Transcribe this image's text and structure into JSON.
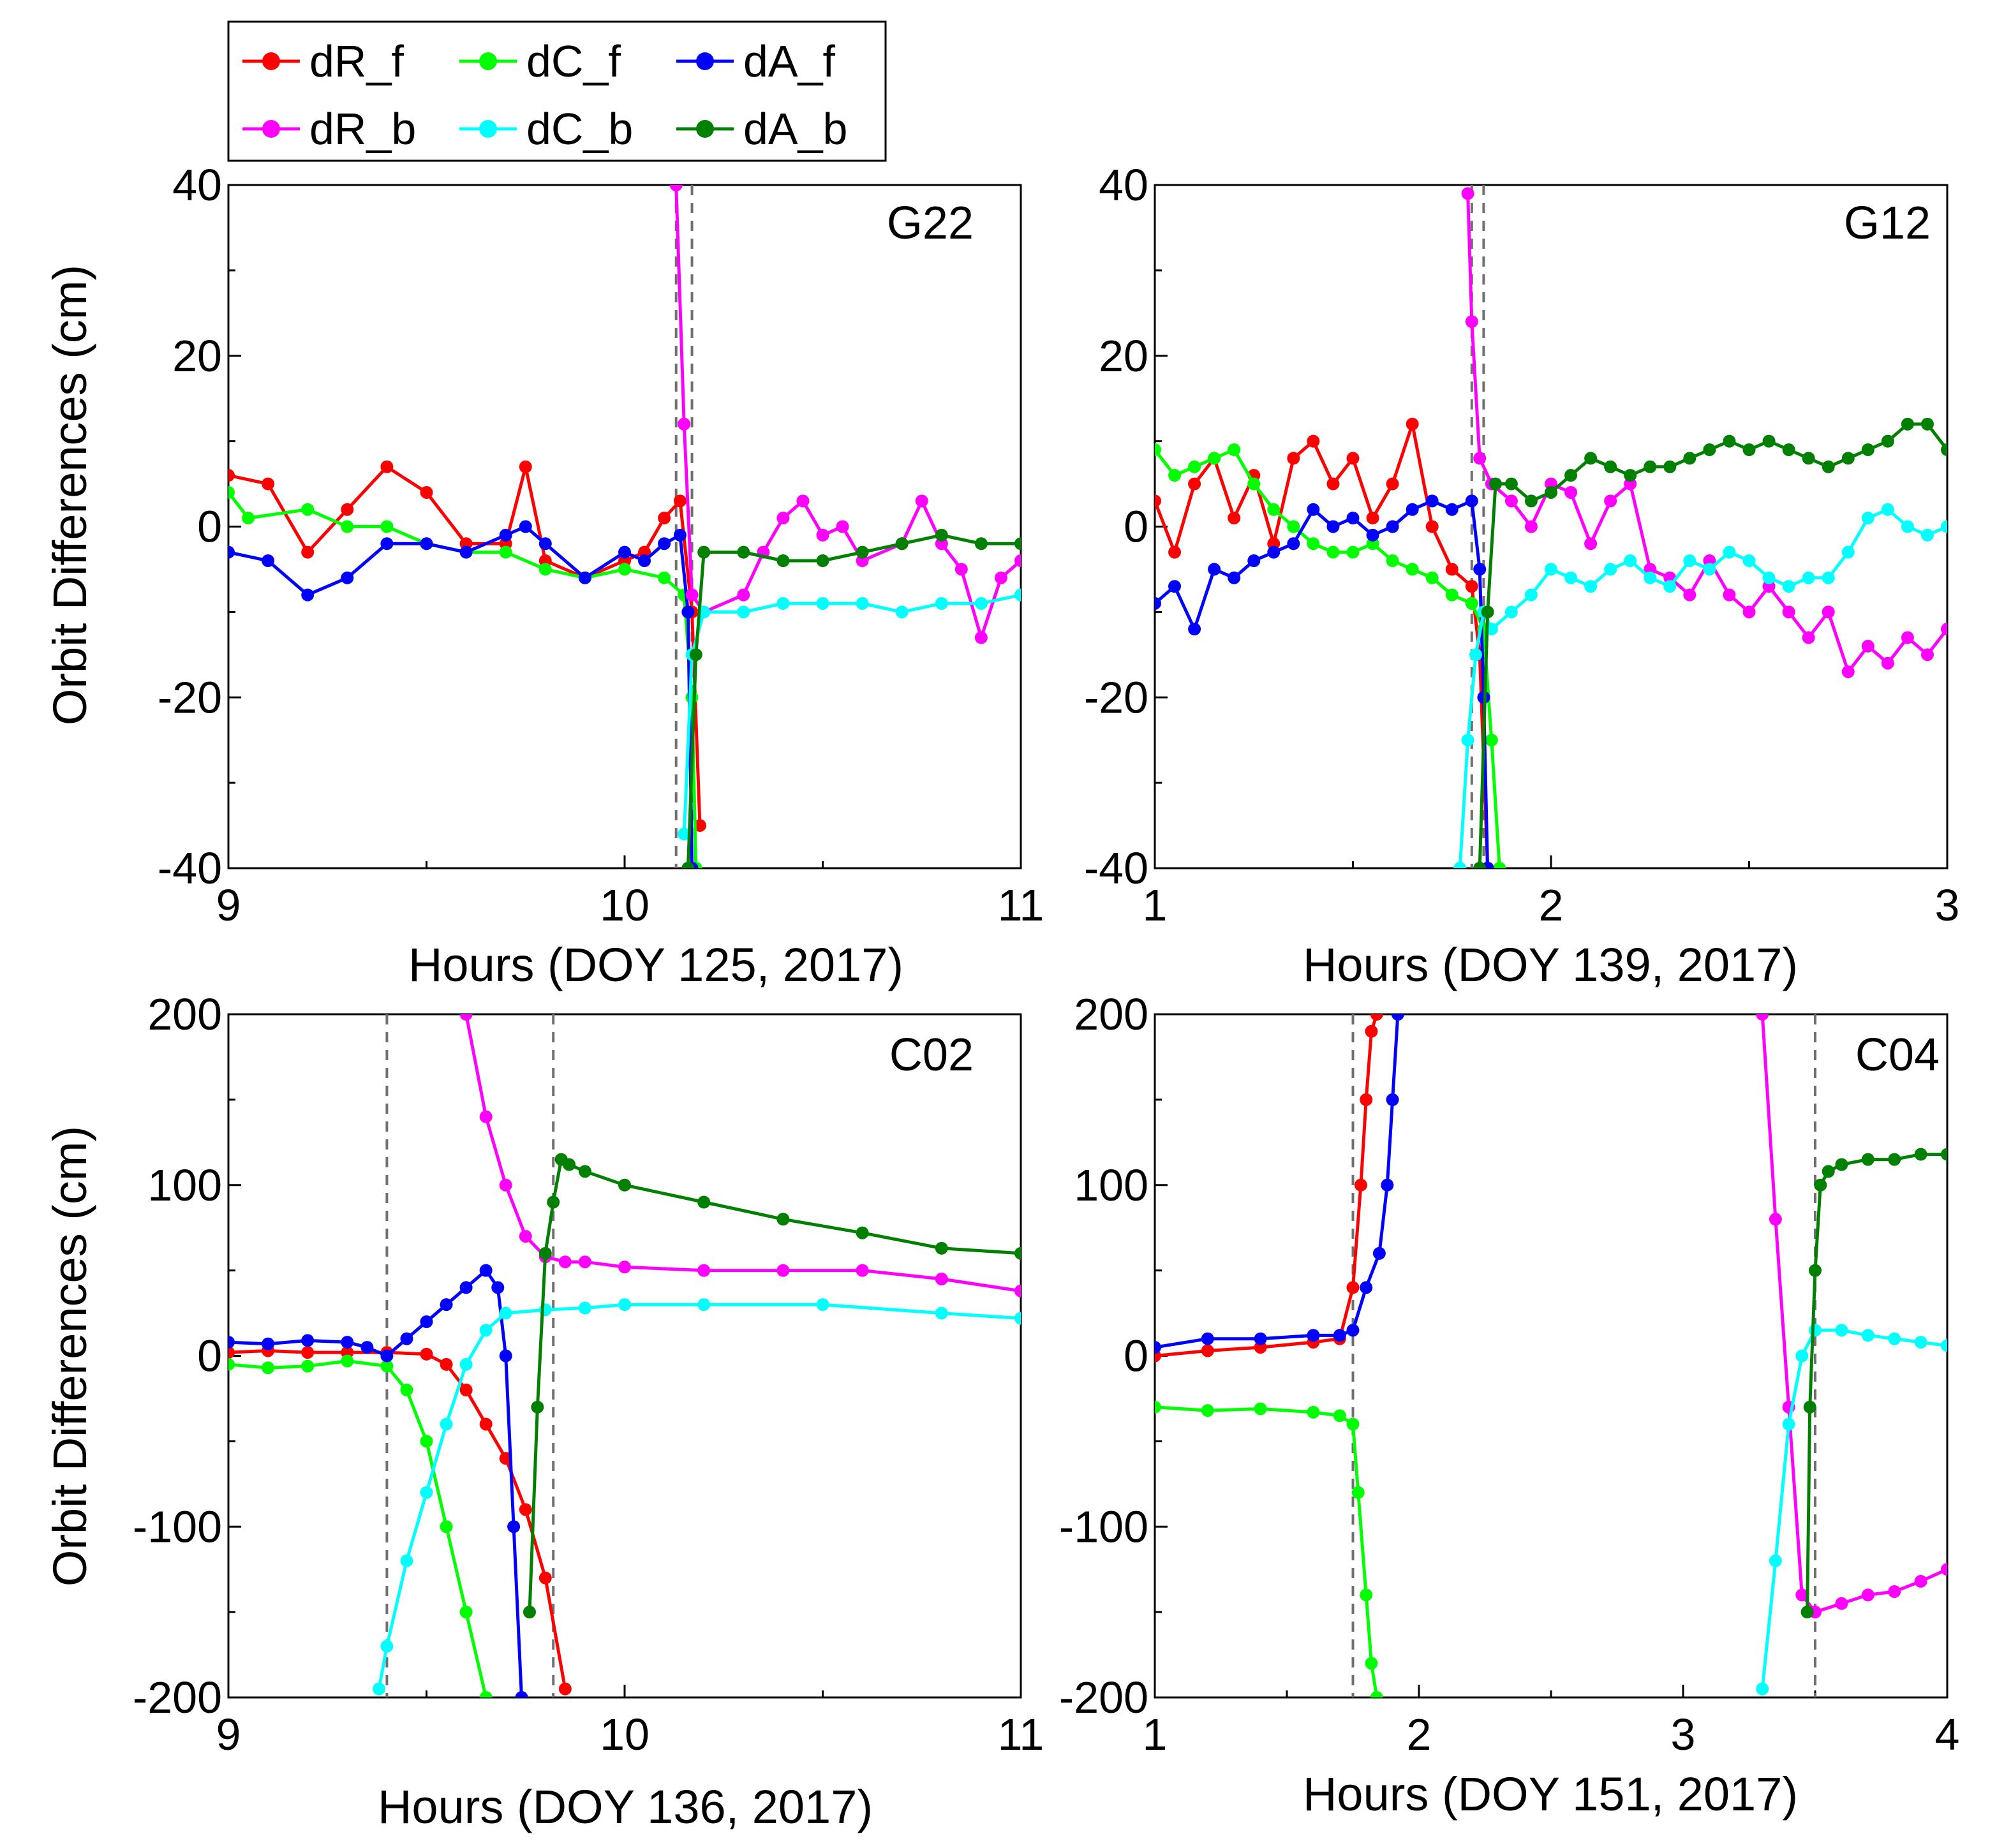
{
  "figure": {
    "legend": [
      {
        "key": "dR_f",
        "label": "dR_f",
        "color": "#ff0000"
      },
      {
        "key": "dC_f",
        "label": "dC_f",
        "color": "#00ff00"
      },
      {
        "key": "dA_f",
        "label": "dA_f",
        "color": "#0000ff"
      },
      {
        "key": "dR_b",
        "label": "dR_b",
        "color": "#ff00ff"
      },
      {
        "key": "dC_b",
        "label": "dC_b",
        "color": "#00ffff"
      },
      {
        "key": "dA_b",
        "label": "dA_b",
        "color": "#008000"
      }
    ]
  },
  "chart_data": [
    {
      "type": "line",
      "title": "G22",
      "xlabel": "Hours (DOY 125, 2017)",
      "ylabel": "Orbit Differences (cm)",
      "xlim": [
        9,
        11
      ],
      "ylim": [
        -40,
        40
      ],
      "xticks": [
        9,
        10,
        11
      ],
      "xticklabels": [
        "9",
        "10",
        "11"
      ],
      "yticks": [
        -40,
        -20,
        0,
        20,
        40
      ],
      "yticklabels": [
        "-40",
        "-20",
        "0",
        "20",
        "40"
      ],
      "vlines": [
        10.13,
        10.17
      ],
      "series": [
        {
          "key": "dR_f",
          "name": "dR_f",
          "x": [
            9.0,
            9.1,
            9.2,
            9.3,
            9.4,
            9.5,
            9.6,
            9.7,
            9.75,
            9.8,
            9.9,
            10.0,
            10.05,
            10.1,
            10.14,
            10.17,
            10.19
          ],
          "y": [
            6,
            5,
            -3,
            2,
            7,
            4,
            -2,
            -2,
            7,
            -4,
            -6,
            -4,
            -3,
            1,
            3,
            -10,
            -35
          ]
        },
        {
          "key": "dC_f",
          "name": "dC_f",
          "x": [
            9.0,
            9.05,
            9.2,
            9.3,
            9.4,
            9.5,
            9.6,
            9.7,
            9.8,
            9.9,
            10.0,
            10.1,
            10.15,
            10.17,
            10.18
          ],
          "y": [
            4,
            1,
            2,
            0,
            0,
            -2,
            -3,
            -3,
            -5,
            -6,
            -5,
            -6,
            -8,
            -20,
            -40
          ]
        },
        {
          "key": "dA_f",
          "name": "dA_f",
          "x": [
            9.0,
            9.1,
            9.2,
            9.3,
            9.4,
            9.5,
            9.6,
            9.7,
            9.75,
            9.8,
            9.9,
            10.0,
            10.05,
            10.1,
            10.14,
            10.16,
            10.17
          ],
          "y": [
            -3,
            -4,
            -8,
            -6,
            -2,
            -2,
            -3,
            -1,
            0,
            -2,
            -6,
            -3,
            -4,
            -2,
            -1,
            -10,
            -40
          ]
        },
        {
          "key": "dR_b",
          "name": "dR_b",
          "x": [
            10.13,
            10.15,
            10.17,
            10.2,
            10.3,
            10.35,
            10.4,
            10.45,
            10.5,
            10.55,
            10.6,
            10.7,
            10.75,
            10.8,
            10.85,
            10.9,
            10.95,
            11.0
          ],
          "y": [
            40,
            12,
            -8,
            -10,
            -8,
            -3,
            1,
            3,
            -1,
            0,
            -4,
            -2,
            3,
            -2,
            -5,
            -13,
            -6,
            -4
          ]
        },
        {
          "key": "dC_b",
          "name": "dC_b",
          "x": [
            10.15,
            10.17,
            10.2,
            10.3,
            10.4,
            10.5,
            10.6,
            10.7,
            10.8,
            10.9,
            11.0
          ],
          "y": [
            -36,
            -15,
            -10,
            -10,
            -9,
            -9,
            -9,
            -10,
            -9,
            -9,
            -8
          ]
        },
        {
          "key": "dA_b",
          "name": "dA_b",
          "x": [
            10.16,
            10.18,
            10.2,
            10.3,
            10.4,
            10.5,
            10.6,
            10.7,
            10.8,
            10.9,
            11.0
          ],
          "y": [
            -40,
            -15,
            -3,
            -3,
            -4,
            -4,
            -3,
            -2,
            -1,
            -2,
            -2
          ]
        }
      ]
    },
    {
      "type": "line",
      "title": "G12",
      "xlabel": "Hours (DOY 139, 2017)",
      "ylabel": "",
      "xlim": [
        1,
        3
      ],
      "ylim": [
        -40,
        40
      ],
      "xticks": [
        1,
        2,
        3
      ],
      "xticklabels": [
        "1",
        "2",
        "3"
      ],
      "yticks": [
        -40,
        -20,
        0,
        20,
        40
      ],
      "yticklabels": [
        "-40",
        "-20",
        "0",
        "20",
        "40"
      ],
      "vlines": [
        1.8,
        1.83
      ],
      "series": [
        {
          "key": "dR_f",
          "name": "dR_f",
          "x": [
            1.0,
            1.05,
            1.1,
            1.15,
            1.2,
            1.25,
            1.3,
            1.35,
            1.4,
            1.45,
            1.5,
            1.55,
            1.6,
            1.65,
            1.7,
            1.75,
            1.8,
            1.82,
            1.84
          ],
          "y": [
            3,
            -3,
            5,
            8,
            1,
            6,
            -2,
            8,
            10,
            5,
            8,
            1,
            5,
            12,
            0,
            -5,
            -7,
            -15,
            -40
          ]
        },
        {
          "key": "dC_f",
          "name": "dC_f",
          "x": [
            1.0,
            1.05,
            1.1,
            1.15,
            1.2,
            1.25,
            1.3,
            1.35,
            1.4,
            1.45,
            1.5,
            1.55,
            1.6,
            1.65,
            1.7,
            1.75,
            1.8,
            1.83,
            1.85,
            1.87
          ],
          "y": [
            9,
            6,
            7,
            8,
            9,
            5,
            2,
            0,
            -2,
            -3,
            -3,
            -2,
            -4,
            -5,
            -6,
            -8,
            -9,
            -12,
            -25,
            -40
          ]
        },
        {
          "key": "dA_f",
          "name": "dA_f",
          "x": [
            1.0,
            1.05,
            1.1,
            1.15,
            1.2,
            1.25,
            1.3,
            1.35,
            1.4,
            1.45,
            1.5,
            1.55,
            1.6,
            1.65,
            1.7,
            1.75,
            1.8,
            1.82,
            1.83,
            1.84
          ],
          "y": [
            -9,
            -7,
            -12,
            -5,
            -6,
            -4,
            -3,
            -2,
            2,
            0,
            1,
            -1,
            0,
            2,
            3,
            2,
            3,
            -5,
            -20,
            -40
          ]
        },
        {
          "key": "dR_b",
          "name": "dR_b",
          "x": [
            1.79,
            1.8,
            1.82,
            1.85,
            1.9,
            1.95,
            2.0,
            2.05,
            2.1,
            2.15,
            2.2,
            2.25,
            2.3,
            2.35,
            2.4,
            2.45,
            2.5,
            2.55,
            2.6,
            2.65,
            2.7,
            2.75,
            2.8,
            2.85,
            2.9,
            2.95,
            3.0
          ],
          "y": [
            39,
            24,
            8,
            5,
            3,
            0,
            5,
            4,
            -2,
            3,
            5,
            -5,
            -6,
            -8,
            -4,
            -8,
            -10,
            -7,
            -10,
            -13,
            -10,
            -17,
            -14,
            -16,
            -13,
            -15,
            -12
          ]
        },
        {
          "key": "dC_b",
          "name": "dC_b",
          "x": [
            1.77,
            1.79,
            1.81,
            1.83,
            1.85,
            1.9,
            1.95,
            2.0,
            2.05,
            2.1,
            2.15,
            2.2,
            2.25,
            2.3,
            2.35,
            2.4,
            2.45,
            2.5,
            2.55,
            2.6,
            2.65,
            2.7,
            2.75,
            2.8,
            2.85,
            2.9,
            2.95,
            3.0
          ],
          "y": [
            -40,
            -25,
            -15,
            -10,
            -12,
            -10,
            -8,
            -5,
            -6,
            -7,
            -5,
            -4,
            -6,
            -7,
            -4,
            -5,
            -3,
            -4,
            -6,
            -7,
            -6,
            -6,
            -3,
            1,
            2,
            0,
            -1,
            0
          ]
        },
        {
          "key": "dA_b",
          "name": "dA_b",
          "x": [
            1.82,
            1.84,
            1.86,
            1.9,
            1.95,
            2.0,
            2.05,
            2.1,
            2.15,
            2.2,
            2.25,
            2.3,
            2.35,
            2.4,
            2.45,
            2.5,
            2.55,
            2.6,
            2.65,
            2.7,
            2.75,
            2.8,
            2.85,
            2.9,
            2.95,
            3.0
          ],
          "y": [
            -40,
            -10,
            5,
            5,
            3,
            4,
            6,
            8,
            7,
            6,
            7,
            7,
            8,
            9,
            10,
            9,
            10,
            9,
            8,
            7,
            8,
            9,
            10,
            12,
            12,
            9
          ]
        }
      ]
    },
    {
      "type": "line",
      "title": "C02",
      "xlabel": "Hours (DOY 136, 2017)",
      "ylabel": "Orbit Differences (cm)",
      "xlim": [
        9,
        11
      ],
      "ylim": [
        -200,
        200
      ],
      "xticks": [
        9,
        10,
        11
      ],
      "xticklabels": [
        "9",
        "10",
        "11"
      ],
      "yticks": [
        -200,
        -100,
        0,
        100,
        200
      ],
      "yticklabels": [
        "-200",
        "-100",
        "0",
        "100",
        "200"
      ],
      "vlines": [
        9.4,
        9.82
      ],
      "series": [
        {
          "key": "dR_f",
          "name": "dR_f",
          "x": [
            9.0,
            9.1,
            9.2,
            9.3,
            9.4,
            9.5,
            9.55,
            9.6,
            9.65,
            9.7,
            9.75,
            9.8,
            9.85
          ],
          "y": [
            2,
            3,
            2,
            2,
            2,
            1,
            -5,
            -20,
            -40,
            -60,
            -90,
            -130,
            -195
          ]
        },
        {
          "key": "dC_f",
          "name": "dC_f",
          "x": [
            9.0,
            9.1,
            9.2,
            9.3,
            9.4,
            9.45,
            9.5,
            9.55,
            9.6,
            9.65
          ],
          "y": [
            -5,
            -7,
            -6,
            -3,
            -6,
            -20,
            -50,
            -100,
            -150,
            -200
          ]
        },
        {
          "key": "dA_f",
          "name": "dA_f",
          "x": [
            9.0,
            9.1,
            9.2,
            9.3,
            9.35,
            9.4,
            9.45,
            9.5,
            9.55,
            9.6,
            9.65,
            9.68,
            9.7,
            9.72,
            9.74
          ],
          "y": [
            8,
            7,
            9,
            8,
            5,
            0,
            10,
            20,
            30,
            40,
            50,
            40,
            0,
            -100,
            -200
          ]
        },
        {
          "key": "dR_b",
          "name": "dR_b",
          "x": [
            9.6,
            9.65,
            9.7,
            9.75,
            9.8,
            9.85,
            9.9,
            10.0,
            10.2,
            10.4,
            10.6,
            10.8,
            11.0
          ],
          "y": [
            200,
            140,
            100,
            70,
            58,
            55,
            55,
            52,
            50,
            50,
            50,
            45,
            38
          ]
        },
        {
          "key": "dC_b",
          "name": "dC_b",
          "x": [
            9.38,
            9.4,
            9.45,
            9.5,
            9.55,
            9.6,
            9.65,
            9.7,
            9.8,
            9.9,
            10.0,
            10.2,
            10.5,
            10.8,
            11.0
          ],
          "y": [
            -195,
            -170,
            -120,
            -80,
            -40,
            -5,
            15,
            25,
            27,
            28,
            30,
            30,
            30,
            25,
            22
          ]
        },
        {
          "key": "dA_b",
          "name": "dA_b",
          "x": [
            9.76,
            9.78,
            9.8,
            9.82,
            9.84,
            9.86,
            9.9,
            10.0,
            10.2,
            10.4,
            10.6,
            10.8,
            11.0
          ],
          "y": [
            -150,
            -30,
            60,
            90,
            115,
            112,
            108,
            100,
            90,
            80,
            72,
            63,
            60
          ]
        }
      ]
    },
    {
      "type": "line",
      "title": "C04",
      "xlabel": "Hours (DOY 151, 2017)",
      "ylabel": "",
      "xlim": [
        1,
        4
      ],
      "ylim": [
        -200,
        200
      ],
      "xticks": [
        1,
        2,
        3,
        4
      ],
      "xticklabels": [
        "1",
        "2",
        "3",
        "4"
      ],
      "yticks": [
        -200,
        -100,
        0,
        100,
        200
      ],
      "yticklabels": [
        "-200",
        "-100",
        "0",
        "100",
        "200"
      ],
      "vlines": [
        1.75,
        3.5
      ],
      "series": [
        {
          "key": "dR_f",
          "name": "dR_f",
          "x": [
            1.0,
            1.2,
            1.4,
            1.6,
            1.7,
            1.75,
            1.78,
            1.8,
            1.82,
            1.84
          ],
          "y": [
            0,
            3,
            5,
            8,
            10,
            40,
            100,
            150,
            190,
            200
          ]
        },
        {
          "key": "dC_f",
          "name": "dC_f",
          "x": [
            1.0,
            1.2,
            1.4,
            1.6,
            1.7,
            1.75,
            1.77,
            1.8,
            1.82,
            1.84
          ],
          "y": [
            -30,
            -32,
            -31,
            -33,
            -35,
            -40,
            -80,
            -140,
            -180,
            -200
          ]
        },
        {
          "key": "dA_f",
          "name": "dA_f",
          "x": [
            1.0,
            1.2,
            1.4,
            1.6,
            1.7,
            1.75,
            1.8,
            1.85,
            1.88,
            1.9,
            1.92
          ],
          "y": [
            5,
            10,
            10,
            12,
            12,
            15,
            40,
            60,
            100,
            150,
            200
          ]
        },
        {
          "key": "dR_b",
          "name": "dR_b",
          "x": [
            3.3,
            3.35,
            3.4,
            3.45,
            3.5,
            3.6,
            3.7,
            3.8,
            3.9,
            4.0
          ],
          "y": [
            200,
            80,
            -30,
            -140,
            -150,
            -145,
            -140,
            -138,
            -132,
            -125
          ]
        },
        {
          "key": "dC_b",
          "name": "dC_b",
          "x": [
            3.3,
            3.35,
            3.4,
            3.45,
            3.5,
            3.6,
            3.7,
            3.8,
            3.9,
            4.0
          ],
          "y": [
            -195,
            -120,
            -40,
            0,
            15,
            15,
            12,
            10,
            8,
            6
          ]
        },
        {
          "key": "dA_b",
          "name": "dA_b",
          "x": [
            3.47,
            3.48,
            3.5,
            3.52,
            3.55,
            3.6,
            3.7,
            3.8,
            3.9,
            4.0
          ],
          "y": [
            -150,
            -30,
            50,
            100,
            108,
            112,
            115,
            115,
            118,
            118
          ]
        }
      ]
    }
  ]
}
